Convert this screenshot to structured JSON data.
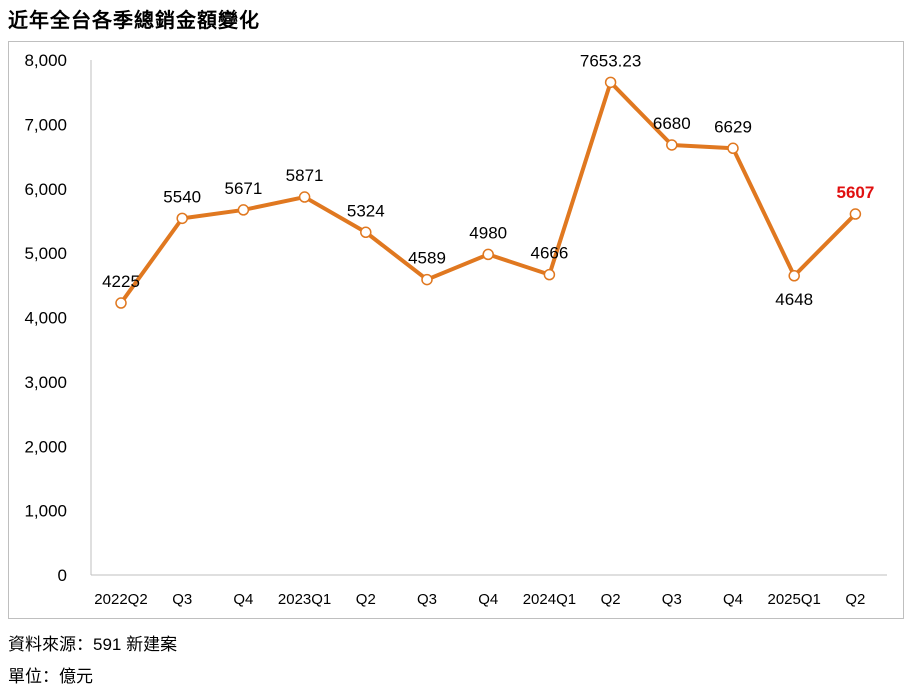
{
  "title": "近年全台各季總銷金額變化",
  "footer": {
    "source": "資料來源：591 新建案",
    "unit": "單位：億元"
  },
  "colors": {
    "line": "#E07820",
    "marker_fill": "#ffffff",
    "highlight_label": "#E01010",
    "axis": "#bfbfbf"
  },
  "chart_data": {
    "type": "line",
    "title": "近年全台各季總銷金額變化",
    "categories": [
      "2022Q2",
      "Q3",
      "Q4",
      "2023Q1",
      "Q2",
      "Q3",
      "Q4",
      "2024Q1",
      "Q2",
      "Q3",
      "Q4",
      "2025Q1",
      "Q2"
    ],
    "series": [
      {
        "values": [
          4225,
          5540,
          5671,
          5871,
          5324,
          4589,
          4980,
          4666,
          7653.23,
          6680,
          6629,
          4648,
          5607
        ],
        "data_labels": [
          "4225",
          "5540",
          "5671",
          "5871",
          "5324",
          "4589",
          "4980",
          "4666",
          "7653.23",
          "6680",
          "6629",
          "4648",
          "5607"
        ]
      }
    ],
    "highlight_index": 12,
    "label_positions": [
      "above",
      "above",
      "above",
      "above",
      "above",
      "above",
      "above",
      "above",
      "above",
      "above",
      "above",
      "below",
      "above"
    ],
    "ylim": [
      0,
      8000
    ],
    "yticks": [
      0,
      1000,
      2000,
      3000,
      4000,
      5000,
      6000,
      7000,
      8000
    ],
    "ytick_labels": [
      "0",
      "1,000",
      "2,000",
      "3,000",
      "4,000",
      "5,000",
      "6,000",
      "7,000",
      "8,000"
    ],
    "grid": false,
    "legend": "none"
  }
}
